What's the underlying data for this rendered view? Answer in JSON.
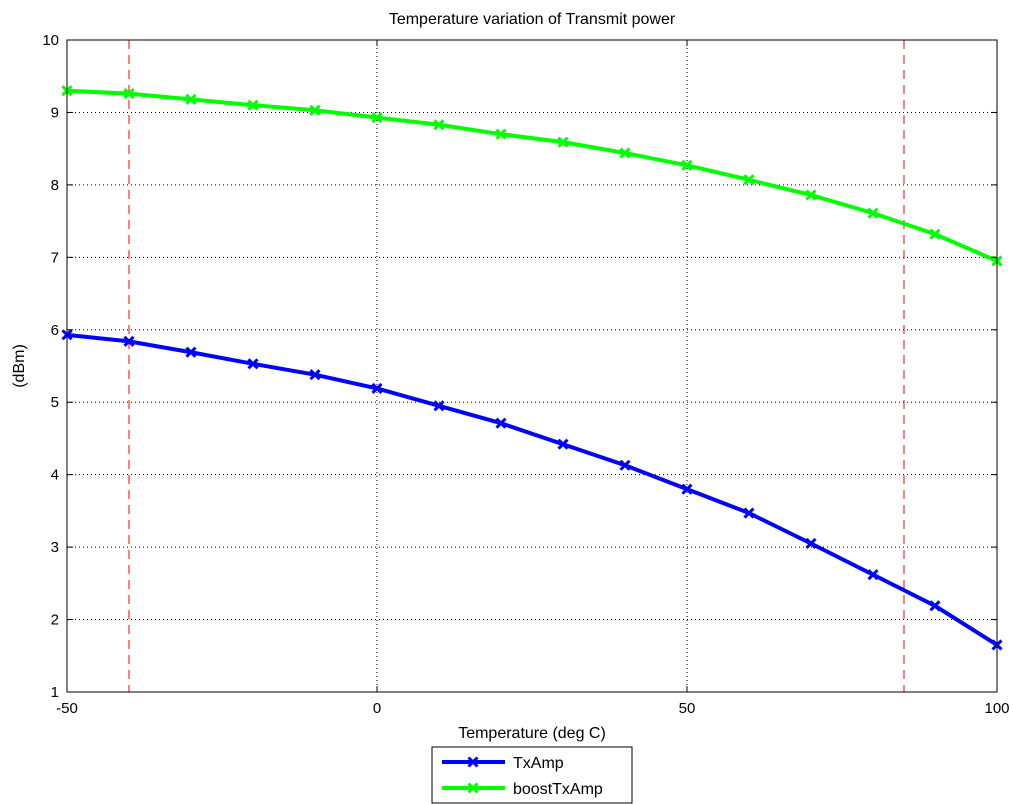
{
  "chart_data": {
    "type": "line",
    "title": "Temperature variation of Transmit power",
    "xlabel": "Temperature (deg C)",
    "ylabel": "(dBm)",
    "xlim": [
      -50,
      100
    ],
    "ylim": [
      1,
      10
    ],
    "xticks": [
      -50,
      0,
      50,
      100
    ],
    "yticks": [
      1,
      2,
      3,
      4,
      5,
      6,
      7,
      8,
      9,
      10
    ],
    "xtick_labels": [
      "-50",
      "0",
      "50",
      "100"
    ],
    "ytick_labels": [
      "1",
      "2",
      "3",
      "4",
      "5",
      "6",
      "7",
      "8",
      "9",
      "10"
    ],
    "grid": true,
    "grid_style": "dotted",
    "legend_position": "bottom-center",
    "x": [
      -50,
      -40,
      -30,
      -20,
      -10,
      0,
      10,
      20,
      30,
      40,
      50,
      60,
      70,
      80,
      90,
      100
    ],
    "series": [
      {
        "name": "TxAmp",
        "color": "#0000ff",
        "marker": "x",
        "values": [
          5.93,
          5.84,
          5.69,
          5.53,
          5.38,
          5.19,
          4.95,
          4.71,
          4.42,
          4.13,
          3.8,
          3.47,
          3.05,
          2.62,
          2.19,
          1.65
        ]
      },
      {
        "name": "boostTxAmp",
        "color": "#00ff00",
        "marker": "x",
        "values": [
          9.3,
          9.26,
          9.18,
          9.1,
          9.03,
          8.93,
          8.83,
          8.7,
          8.59,
          8.44,
          8.27,
          8.07,
          7.86,
          7.61,
          7.32,
          6.95
        ]
      }
    ],
    "reference_lines": [
      {
        "axis": "x",
        "value": -40,
        "color": "#ff0000",
        "style": "dashed"
      },
      {
        "axis": "x",
        "value": 85,
        "color": "#ff0000",
        "style": "dashed"
      }
    ]
  }
}
